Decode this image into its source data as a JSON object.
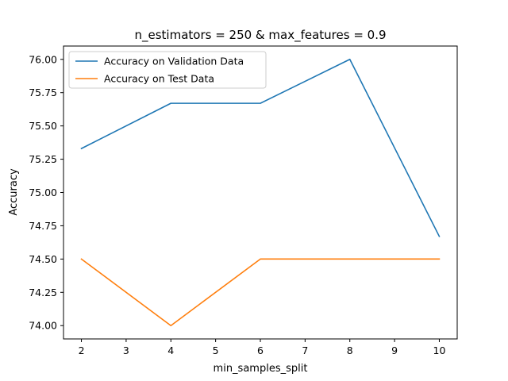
{
  "chart_data": {
    "type": "line",
    "title": "n_estimators = 250 & max_features = 0.9",
    "xlabel": "min_samples_split",
    "ylabel": "Accuracy",
    "x": [
      2,
      4,
      6,
      8,
      10
    ],
    "xlim": [
      1.6,
      10.4
    ],
    "ylim": [
      73.9,
      76.1
    ],
    "xticks": [
      2,
      3,
      4,
      5,
      6,
      7,
      8,
      9,
      10
    ],
    "xtick_labels": [
      "2",
      "3",
      "4",
      "5",
      "6",
      "7",
      "8",
      "9",
      "10"
    ],
    "yticks": [
      74.0,
      74.25,
      74.5,
      74.75,
      75.0,
      75.25,
      75.5,
      75.75,
      76.0
    ],
    "ytick_labels": [
      "74.00",
      "74.25",
      "74.50",
      "74.75",
      "75.00",
      "75.25",
      "75.50",
      "75.75",
      "76.00"
    ],
    "grid": false,
    "legend_position": "top-left",
    "series": [
      {
        "name": "Accuracy on Validation Data",
        "color": "#1f77b4",
        "values": [
          75.33,
          75.67,
          75.67,
          76.0,
          74.67
        ]
      },
      {
        "name": "Accuracy on Test Data",
        "color": "#ff7f0e",
        "values": [
          74.5,
          74.0,
          74.5,
          74.5,
          74.5
        ]
      }
    ]
  }
}
